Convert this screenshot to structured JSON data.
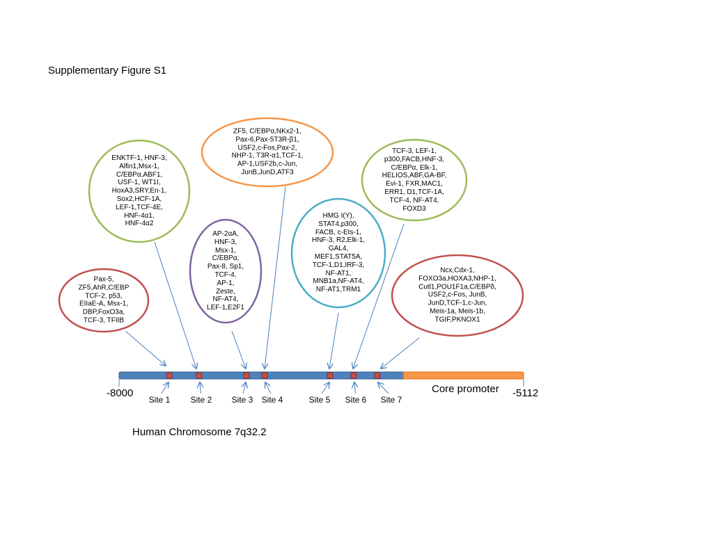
{
  "title": "Supplementary Figure S1",
  "chromosome_label": "Human Chromosome 7q32.2",
  "core_promoter_label": "Core promoter",
  "start_label": "-8000",
  "end_label": "-5112",
  "colors": {
    "chromosome_bar": "#4f81bd",
    "chromosome_bar_border": "#2c5d8f",
    "core_promoter": "#f79646",
    "site_marker": "#c0504d",
    "arrow": "#4a7ebb",
    "red_ellipse": "#c0504d",
    "green_ellipse": "#9bbb59",
    "purple_ellipse": "#8064a2",
    "orange_ellipse": "#f79646",
    "blue_ellipse": "#4bacc6"
  },
  "sites": [
    {
      "label": "Site 1"
    },
    {
      "label": "Site 2"
    },
    {
      "label": "Site 3"
    },
    {
      "label": "Site 4"
    },
    {
      "label": "Site 5"
    },
    {
      "label": "Site 6"
    },
    {
      "label": "Site 7"
    }
  ],
  "factor_groups": [
    {
      "site": "Site 1",
      "color": "red",
      "text": "Pax-5,\nZF5,AhR,C/EBP\nTCF-2, p53,\nEIIaE-A, Msx-1,\nDBP,FoxO3a,\nTCF-3, TFIIB"
    },
    {
      "site": "Site 2",
      "color": "green",
      "text": "ENKTF-1, HNF-3,\nAlfin1,Msx-1,\nC/EBPα,ABF1,\nUSF-1, WT1I,\nHoxA3,SRY,En-1,\nSox2,HCF-1A,\nLEF-1,TCF-4E,\nHNF-4α1,\nHNF-4α2"
    },
    {
      "site": "Site 3",
      "color": "purple",
      "text": "AP-2αA,\nHNF-3,\nMsx-1,\nC/EBPα,\nPax-8, Sp1,\nTCF-4,\nAP-1,\nZeste,\nNF-AT4,\nLEF-1,E2F1"
    },
    {
      "site": "Site 4",
      "color": "orange",
      "text": "ZF5, C/EBPα,NKx2-1,\nPax-6,Pax-5T3R-β1,\nUSF2,c-Fos,Pax-2,\nNHP-1, T3R-α1,TCF-1,\nAP-1,USF2b,c-Jun,\nJunB,JunD,ATF3"
    },
    {
      "site": "Site 5",
      "color": "blue",
      "text": "HMG I(Y),\nSTAT4,p300,\nFACB, c-Ets-1,\nHNF-3, R2,Elk-1,\nGAL4,\nMEF1,STAT5A,\nTCF-1,D1,IRF-3,\nNF-AT1,\nMNB1a,NF-AT4,\nNF-AT1,TRM1"
    },
    {
      "site": "Site 6",
      "color": "green",
      "text": "TCF-3, LEF-1,\np300,FACB,HNF-3,\nC/EBPα, Elk-1,\nHELIOS,ABF,GA-BF,\nEvi-1, FXR,MAC1,\nERR1, D1,TCF-1A,\nTCF-4, NF-AT4,\nFOXD3"
    },
    {
      "site": "Site 7",
      "color": "red",
      "text": "Ncx,Cdx-1,\nFOXO3a,HOXA3,NHP-1,\nCutl1,POU1F1a,C/EBPδ,\nUSF2,c-Fos, JunB,\nJunD,TCF-1,c-Jun,\nMeis-1a, Meis-1b,\nTGIF,PKNOX1"
    }
  ]
}
